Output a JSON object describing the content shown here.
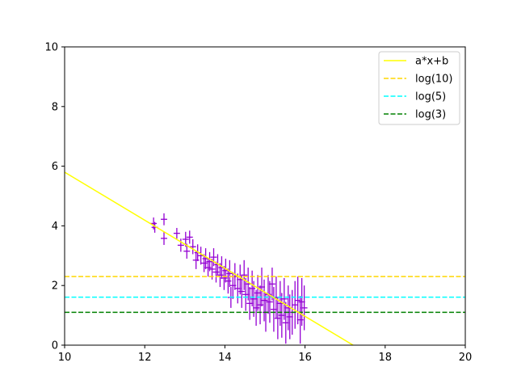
{
  "chart_data": {
    "type": "scatter",
    "title": "",
    "xlabel": "",
    "ylabel": "",
    "xlim": [
      10,
      20
    ],
    "ylim": [
      0,
      10
    ],
    "xticks": [
      "10",
      "12",
      "14",
      "16",
      "18",
      "20"
    ],
    "yticks": [
      "0",
      "2",
      "4",
      "6",
      "8",
      "10"
    ],
    "grid": false,
    "legend_position": "top-right",
    "series": [
      {
        "name": "a*x+b",
        "kind": "line",
        "style": "solid",
        "color": "#ffff00",
        "x": [
          10.0,
          17.2
        ],
        "y": [
          5.8,
          0.0
        ]
      },
      {
        "name": "log(10)",
        "kind": "hline",
        "style": "dashed",
        "color": "#ffd700",
        "y": 2.3
      },
      {
        "name": "log(5)",
        "kind": "hline",
        "style": "dashed",
        "color": "#00ffff",
        "y": 1.61
      },
      {
        "name": "log(3)",
        "kind": "hline",
        "style": "dashed",
        "color": "#008000",
        "y": 1.1
      },
      {
        "kind": "errorbar",
        "color": "#9400d3",
        "xerr": 0.08,
        "points": [
          [
            12.22,
            4.08,
            0.2
          ],
          [
            12.25,
            3.95,
            0.18
          ],
          [
            12.48,
            4.22,
            0.2
          ],
          [
            12.48,
            3.58,
            0.22
          ],
          [
            12.8,
            3.75,
            0.18
          ],
          [
            12.9,
            3.35,
            0.22
          ],
          [
            13.02,
            3.55,
            0.25
          ],
          [
            13.05,
            3.15,
            0.25
          ],
          [
            13.12,
            3.62,
            0.22
          ],
          [
            13.2,
            3.3,
            0.25
          ],
          [
            13.28,
            2.85,
            0.3
          ],
          [
            13.32,
            3.1,
            0.28
          ],
          [
            13.4,
            3.0,
            0.3
          ],
          [
            13.48,
            2.75,
            0.3
          ],
          [
            13.52,
            2.9,
            0.35
          ],
          [
            13.58,
            2.6,
            0.3
          ],
          [
            13.62,
            2.8,
            0.32
          ],
          [
            13.68,
            2.55,
            0.35
          ],
          [
            13.72,
            2.95,
            0.3
          ],
          [
            13.78,
            2.45,
            0.35
          ],
          [
            13.82,
            2.7,
            0.35
          ],
          [
            13.88,
            2.35,
            0.4
          ],
          [
            13.92,
            2.6,
            0.38
          ],
          [
            13.98,
            2.25,
            0.4
          ],
          [
            14.02,
            2.5,
            0.4
          ],
          [
            14.08,
            2.15,
            0.42
          ],
          [
            14.12,
            2.4,
            0.45
          ],
          [
            14.15,
            1.6,
            0.35
          ],
          [
            14.2,
            2.0,
            0.45
          ],
          [
            14.25,
            2.3,
            0.45
          ],
          [
            14.32,
            1.9,
            0.5
          ],
          [
            14.38,
            2.2,
            0.5
          ],
          [
            14.42,
            1.8,
            0.55
          ],
          [
            14.48,
            2.35,
            0.5
          ],
          [
            14.52,
            1.7,
            0.55
          ],
          [
            14.58,
            2.05,
            0.55
          ],
          [
            14.62,
            1.4,
            0.55
          ],
          [
            14.68,
            1.9,
            0.6
          ],
          [
            14.72,
            1.55,
            0.6
          ],
          [
            14.78,
            1.25,
            0.6
          ],
          [
            14.82,
            1.75,
            0.6
          ],
          [
            14.88,
            1.35,
            0.65
          ],
          [
            14.92,
            1.95,
            0.65
          ],
          [
            14.98,
            1.5,
            0.7
          ],
          [
            15.02,
            1.1,
            0.65
          ],
          [
            15.08,
            1.7,
            0.65
          ],
          [
            15.12,
            1.45,
            0.7
          ],
          [
            15.18,
            2.05,
            0.55
          ],
          [
            15.22,
            1.2,
            0.75
          ],
          [
            15.28,
            1.6,
            0.7
          ],
          [
            15.32,
            0.9,
            0.7
          ],
          [
            15.38,
            1.4,
            0.75
          ],
          [
            15.42,
            1.0,
            0.75
          ],
          [
            15.48,
            1.55,
            0.7
          ],
          [
            15.52,
            0.75,
            0.7
          ],
          [
            15.58,
            1.25,
            0.75
          ],
          [
            15.62,
            0.95,
            0.75
          ],
          [
            15.68,
            1.1,
            0.75
          ],
          [
            15.75,
            1.35,
            0.8
          ],
          [
            15.82,
            1.5,
            0.8
          ],
          [
            15.88,
            0.85,
            0.8
          ],
          [
            15.92,
            1.45,
            0.8
          ],
          [
            15.98,
            1.25,
            0.75
          ]
        ]
      }
    ]
  }
}
